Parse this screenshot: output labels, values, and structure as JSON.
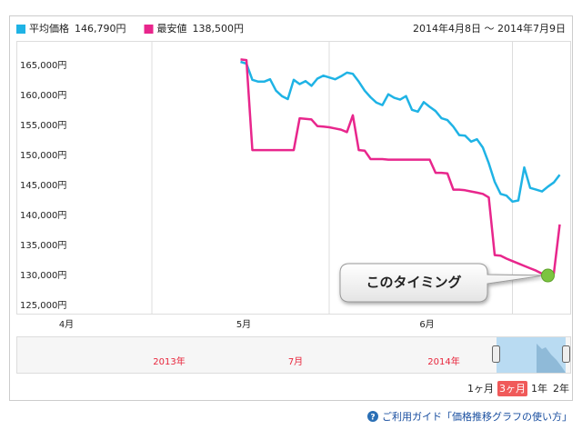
{
  "chart_data": {
    "type": "line",
    "date_range": "2014年4月8日 ～ 2014年7月9日",
    "xlim": [
      0,
      84
    ],
    "xticks": [
      {
        "value": 0,
        "label": "4月"
      },
      {
        "value": 30,
        "label": "5月"
      },
      {
        "value": 61,
        "label": "6月"
      }
    ],
    "xgrid": [
      14,
      44,
      75
    ],
    "ylim": [
      123640,
      169090
    ],
    "yticks": [
      {
        "value": 165000,
        "label": "165,000円"
      },
      {
        "value": 160000,
        "label": "160,000円"
      },
      {
        "value": 155000,
        "label": "155,000円"
      },
      {
        "value": 150000,
        "label": "150,000円"
      },
      {
        "value": 145000,
        "label": "145,000円"
      },
      {
        "value": 140000,
        "label": "140,000円"
      },
      {
        "value": 135000,
        "label": "135,000円"
      },
      {
        "value": 130000,
        "label": "130,000円"
      },
      {
        "value": 125000,
        "label": "125,000円"
      }
    ],
    "x": [
      29,
      30,
      31,
      32,
      33,
      34,
      35,
      36,
      37,
      38,
      39,
      40,
      41,
      42,
      43,
      44,
      45,
      46,
      47,
      48,
      49,
      50,
      51,
      52,
      53,
      54,
      55,
      56,
      57,
      58,
      59,
      60,
      61,
      62,
      63,
      64,
      65,
      66,
      67,
      68,
      69,
      70,
      71,
      72,
      73,
      74,
      75,
      76,
      77,
      78,
      79,
      80,
      81,
      82,
      83
    ],
    "series": [
      {
        "name": "平均価格",
        "current_label": "146,790円",
        "color": "#1fb3e5",
        "values": [
          165600,
          165300,
          162600,
          162300,
          162300,
          162700,
          160800,
          159900,
          159400,
          162600,
          161900,
          162400,
          161600,
          162800,
          163300,
          163000,
          162700,
          163200,
          163800,
          163600,
          162300,
          160800,
          159700,
          158800,
          158400,
          160200,
          159600,
          159300,
          159900,
          157600,
          157300,
          158900,
          158100,
          157400,
          156200,
          155900,
          154800,
          153400,
          153300,
          152300,
          152700,
          151300,
          148700,
          145600,
          143600,
          143300,
          142300,
          142500,
          148000,
          144600,
          144300,
          144000,
          144800,
          145500,
          146790
        ]
      },
      {
        "name": "最安値",
        "current_label": "138,500円",
        "color": "#e8268c",
        "values": [
          166000,
          165900,
          150900,
          150900,
          150900,
          150900,
          150900,
          150900,
          150900,
          150900,
          156200,
          156100,
          156000,
          154900,
          154800,
          154700,
          154500,
          154300,
          153900,
          156700,
          150900,
          150800,
          149400,
          149400,
          149400,
          149300,
          149300,
          149300,
          149300,
          149300,
          149300,
          149300,
          149300,
          147100,
          147100,
          147000,
          144300,
          144300,
          144200,
          144000,
          143800,
          143600,
          143000,
          133400,
          133300,
          132800,
          132400,
          132000,
          131600,
          131200,
          130800,
          130300,
          130000,
          130300,
          138500
        ]
      }
    ],
    "annotation": {
      "text": "このタイミング",
      "series": 1,
      "index": 52
    },
    "navigator": {
      "labels": [
        "2013年",
        "7月",
        "2014年"
      ]
    },
    "range_buttons": [
      "1ヶ月",
      "3ヶ月",
      "1年",
      "2年"
    ],
    "selected_range": 1
  },
  "footer": {
    "link": "ご利用ガイド「価格推移グラフの使い方」"
  }
}
